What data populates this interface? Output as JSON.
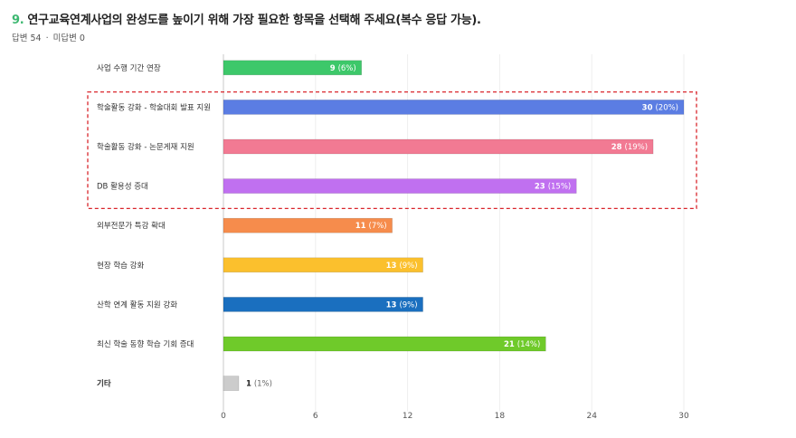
{
  "question": {
    "number": "9.",
    "text": "연구교육연계사업의 완성도를 높이기 위해 가장 필요한 항목을 선택해 주세요(복수 응답 가능).",
    "answered": "답변 54",
    "separator": "·",
    "unanswered": "미답변 0"
  },
  "chart_data": {
    "type": "bar",
    "orientation": "horizontal",
    "title": "연구교육연계사업의 완성도를 높이기 위해 가장 필요한 항목을 선택해 주세요(복수 응답 가능).",
    "xlim": [
      0,
      30
    ],
    "xticks": [
      0,
      6,
      12,
      18,
      24,
      30
    ],
    "grid": true,
    "highlight": [
      1,
      3
    ],
    "categories": [
      "사업 수행 기간 연장",
      "학술활동 강화 - 학술대회 발표 지원",
      "학술활동 강화 - 논문게재 지원",
      "DB 활용성 증대",
      "외부전문가 특강 확대",
      "현장 학습 강화",
      "산학 연계 활동 지원 강화",
      "최신 학술 동향 학습 기회 증대",
      "기타"
    ],
    "values": [
      9,
      30,
      28,
      23,
      11,
      13,
      13,
      21,
      1
    ],
    "percents": [
      "(6%)",
      "(20%)",
      "(19%)",
      "(15%)",
      "(7%)",
      "(9%)",
      "(9%)",
      "(14%)",
      "(1%)"
    ],
    "colors": [
      "#3dc86a",
      "#5b7de3",
      "#f27a93",
      "#c070f0",
      "#f68c4c",
      "#fbc02d",
      "#1a6fbf",
      "#6fca2a",
      "#cccccc"
    ],
    "bold_categories": [
      8
    ]
  }
}
